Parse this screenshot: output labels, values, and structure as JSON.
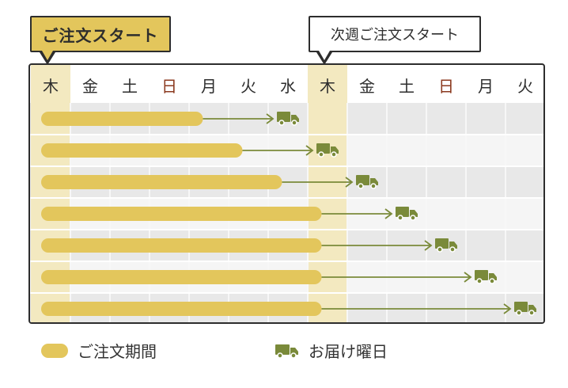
{
  "callouts": {
    "order_start": "ご注文スタート",
    "next_week_start": "次週ご注文スタート"
  },
  "days": [
    "木",
    "金",
    "土",
    "日",
    "月",
    "火",
    "水",
    "木",
    "金",
    "土",
    "日",
    "月",
    "火"
  ],
  "holiday_indices": [
    3,
    10
  ],
  "highlight_indices": [
    0,
    7
  ],
  "rows": [
    {
      "order_end_day_index": 4,
      "delivery_day_index": 6
    },
    {
      "order_end_day_index": 5,
      "delivery_day_index": 7
    },
    {
      "order_end_day_index": 6,
      "delivery_day_index": 8
    },
    {
      "order_end_day_index": 7,
      "delivery_day_index": 9
    },
    {
      "order_end_day_index": 7,
      "delivery_day_index": 10
    },
    {
      "order_end_day_index": 7,
      "delivery_day_index": 11
    },
    {
      "order_end_day_index": 7,
      "delivery_day_index": 12
    }
  ],
  "legend": {
    "order_period": "ご注文期間",
    "delivery_day": "お届け曜日"
  },
  "colors": {
    "bar": "#e3c65c",
    "highlight": "#f3e9c0",
    "arrow": "#7a8a3a",
    "truck": "#7a8a3a",
    "holiday": "#8b3a1f",
    "row_gray": "#e8e8e8"
  }
}
